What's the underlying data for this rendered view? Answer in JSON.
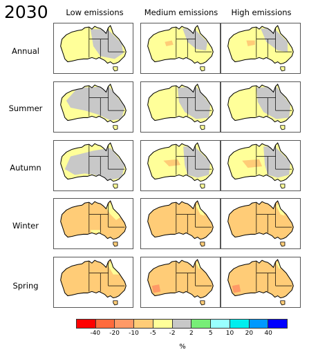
{
  "title": "2030",
  "columns": [
    "Low emissions",
    "Medium emissions",
    "High emissions"
  ],
  "rows": [
    {
      "label": "Annual",
      "panels": [
        {
          "scenario": "Low emissions",
          "dominant": "-2 to 2 / -5 to -2"
        },
        {
          "scenario": "Medium emissions",
          "dominant": "-5 to -2"
        },
        {
          "scenario": "High emissions",
          "dominant": "-5 to -2"
        }
      ]
    },
    {
      "label": "Summer",
      "panels": [
        {
          "scenario": "Low emissions",
          "dominant": "-2 to 2"
        },
        {
          "scenario": "Medium emissions",
          "dominant": "-2 to 2"
        },
        {
          "scenario": "High emissions",
          "dominant": "-2 to 2"
        }
      ]
    },
    {
      "label": "Autumn",
      "panels": [
        {
          "scenario": "Low emissions",
          "dominant": "-2 to 2"
        },
        {
          "scenario": "Medium emissions",
          "dominant": "-5 to -2"
        },
        {
          "scenario": "High emissions",
          "dominant": "-5 to -2"
        }
      ]
    },
    {
      "label": "Winter",
      "panels": [
        {
          "scenario": "Low emissions",
          "dominant": "-10 to -5"
        },
        {
          "scenario": "Medium emissions",
          "dominant": "-10 to -5"
        },
        {
          "scenario": "High emissions",
          "dominant": "-10 to -5"
        }
      ]
    },
    {
      "label": "Spring",
      "panels": [
        {
          "scenario": "Low emissions",
          "dominant": "-10 to -5"
        },
        {
          "scenario": "Medium emissions",
          "dominant": "-10 to -5"
        },
        {
          "scenario": "High emissions",
          "dominant": "-10 to -5"
        }
      ]
    }
  ],
  "legend": {
    "unit": "%",
    "colors": [
      "#ff0000",
      "#ff6a3c",
      "#ff9966",
      "#ffcc77",
      "#ffff99",
      "#c8c8c8",
      "#77ee77",
      "#99ffff",
      "#00eeee",
      "#0099ff",
      "#0000ff"
    ],
    "ticks": [
      "-40",
      "-20",
      "-10",
      "-5",
      "-2",
      "2",
      "5",
      "10",
      "20",
      "40"
    ]
  },
  "fills": {
    "yellow": "#ffff99",
    "orange": "#ffcc77",
    "grey": "#c8c8c8",
    "darkorange": "#ff9966"
  }
}
